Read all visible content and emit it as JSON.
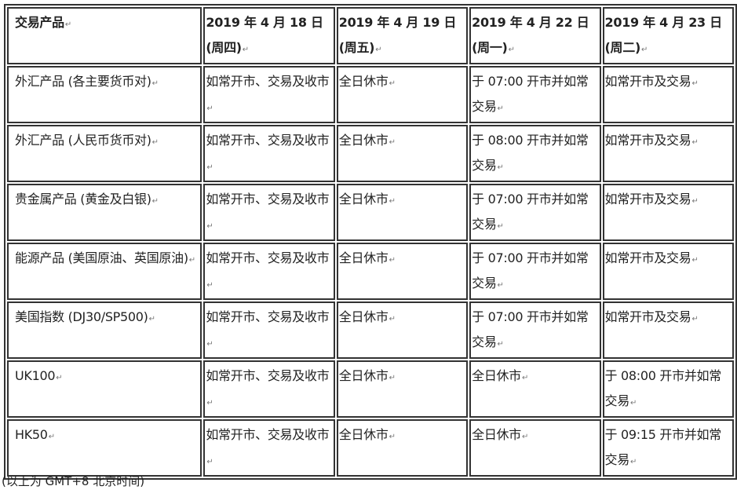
{
  "table": {
    "headers": [
      "交易产品",
      "2019 年 4 月 18 日(周四)",
      "2019 年 4 月 19 日(周五)",
      "2019 年 4 月 22 日(周一)",
      "2019 年 4 月 23 日(周二)"
    ],
    "rows": [
      [
        "外汇产品 (各主要货币对)",
        "如常开市、交易及收市",
        "全日休市",
        "于 07:00 开市并如常交易",
        "如常开市及交易"
      ],
      [
        "外汇产品 (人民币货币对)",
        "如常开市、交易及收市",
        "全日休市",
        "于 08:00 开市并如常交易",
        "如常开市及交易"
      ],
      [
        "贵金属产品 (黄金及白银)",
        "如常开市、交易及收市",
        "全日休市",
        "于 07:00 开市并如常交易",
        "如常开市及交易"
      ],
      [
        "能源产品 (美国原油、英国原油)",
        "如常开市、交易及收市",
        "全日休市",
        "于 07:00 开市并如常交易",
        "如常开市及交易"
      ],
      [
        "美国指数 (DJ30/SP500)",
        "如常开市、交易及收市",
        "全日休市",
        "于 07:00 开市并如常交易",
        "如常开市及交易"
      ],
      [
        "UK100",
        "如常开市、交易及收市",
        "全日休市",
        "全日休市",
        "于 08:00 开市并如常交易"
      ],
      [
        "HK50",
        "如常开市、交易及收市",
        "全日休市",
        "全日休市",
        "于 09:15 开市并如常交易"
      ]
    ]
  },
  "footnote": "(以上为 GMT+8 北京时间)"
}
